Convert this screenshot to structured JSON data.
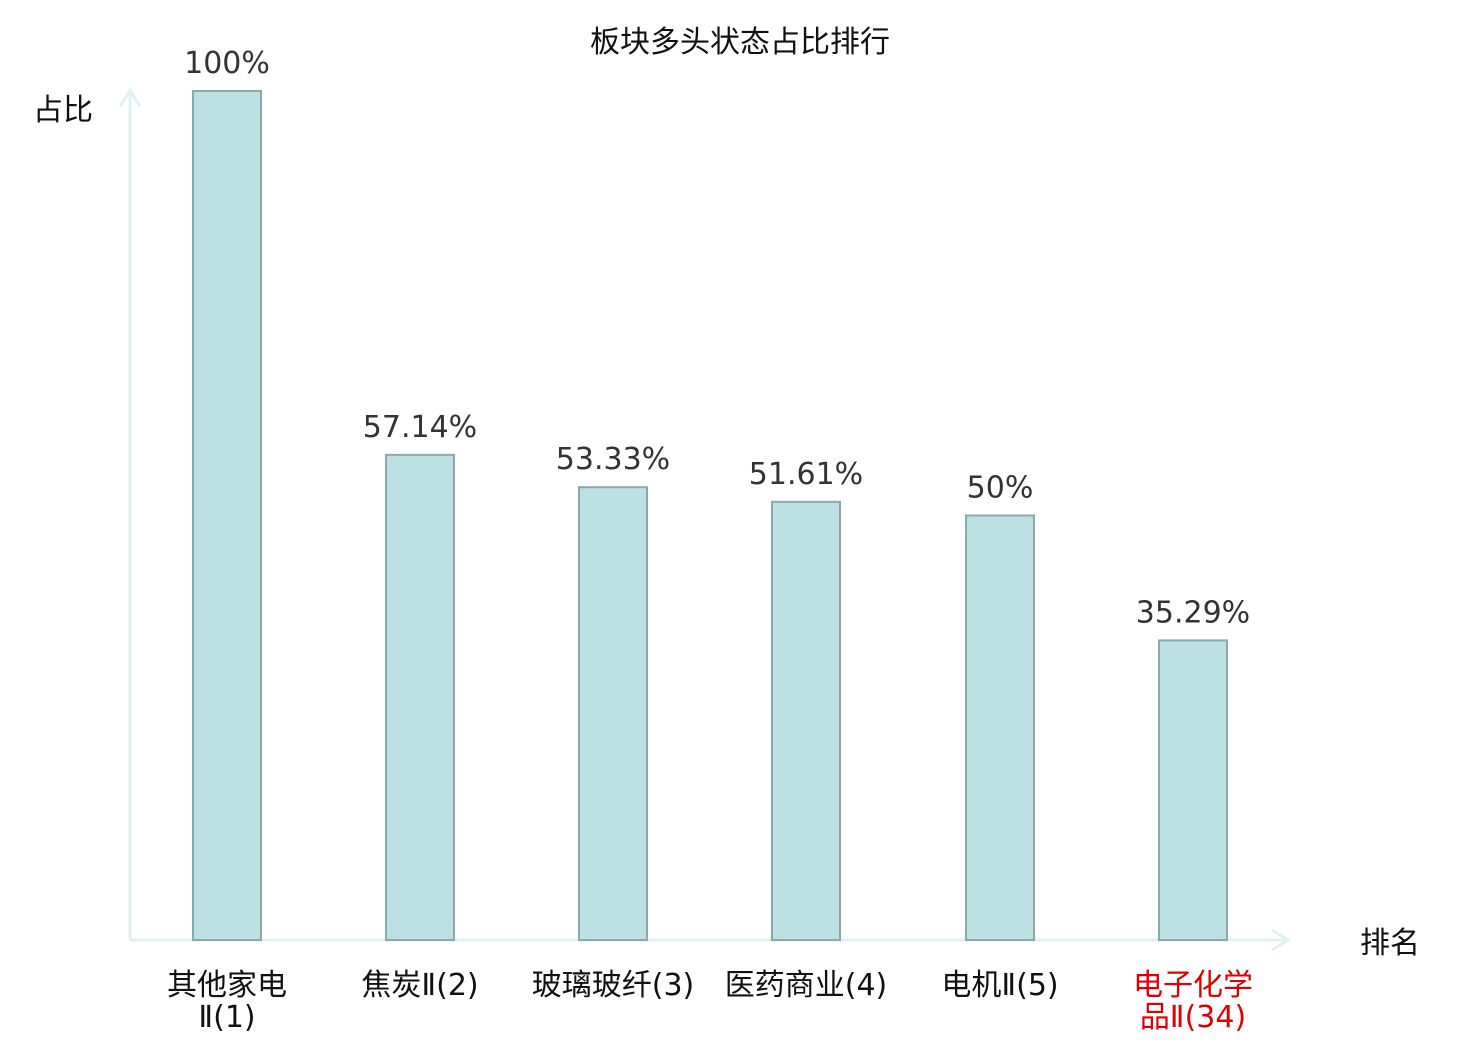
{
  "chart_data": {
    "type": "bar",
    "title": "板块多头状态占比排行",
    "ylabel": "占比",
    "xlabel": "排名",
    "ylim": [
      0,
      100
    ],
    "unit": "%",
    "grid": false,
    "categories": [
      {
        "lines": [
          "其他家电",
          "Ⅱ(1)"
        ],
        "highlight": false
      },
      {
        "lines": [
          "焦炭Ⅱ(2)"
        ],
        "highlight": false
      },
      {
        "lines": [
          "玻璃玻纤(3)"
        ],
        "highlight": false
      },
      {
        "lines": [
          "医药商业(4)"
        ],
        "highlight": false
      },
      {
        "lines": [
          "电机Ⅱ(5)"
        ],
        "highlight": false
      },
      {
        "lines": [
          "电子化学",
          "品Ⅱ(34)"
        ],
        "highlight": true
      }
    ],
    "values": [
      100,
      57.14,
      53.33,
      51.61,
      50,
      35.29
    ],
    "value_labels": [
      "100%",
      "57.14%",
      "53.33%",
      "51.61%",
      "50%",
      "35.29%"
    ]
  },
  "colors": {
    "bar_fill": "#bde0e3",
    "bar_stroke": "#8aa9ad",
    "axis": "#dff2ef",
    "highlight_text": "#e00000",
    "text": "#111111",
    "value_text": "#333333"
  }
}
